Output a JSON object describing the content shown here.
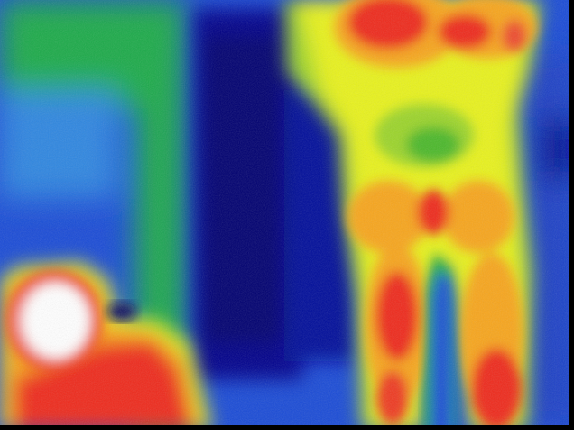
{
  "image": {
    "kind": "thermal-infrared-photo",
    "palette": {
      "coldest": "#00008b",
      "cold": "#1a4bd6",
      "cool": "#2e86e0",
      "mid": "#1faa4a",
      "warm": "#e8f21a",
      "warmer": "#f7a51e",
      "hot": "#ee2a1f",
      "hottest": "#ffffff"
    },
    "subjects": [
      "standing-person-legs",
      "seated-person-head-shoulders",
      "door-frame",
      "wall-background"
    ]
  }
}
